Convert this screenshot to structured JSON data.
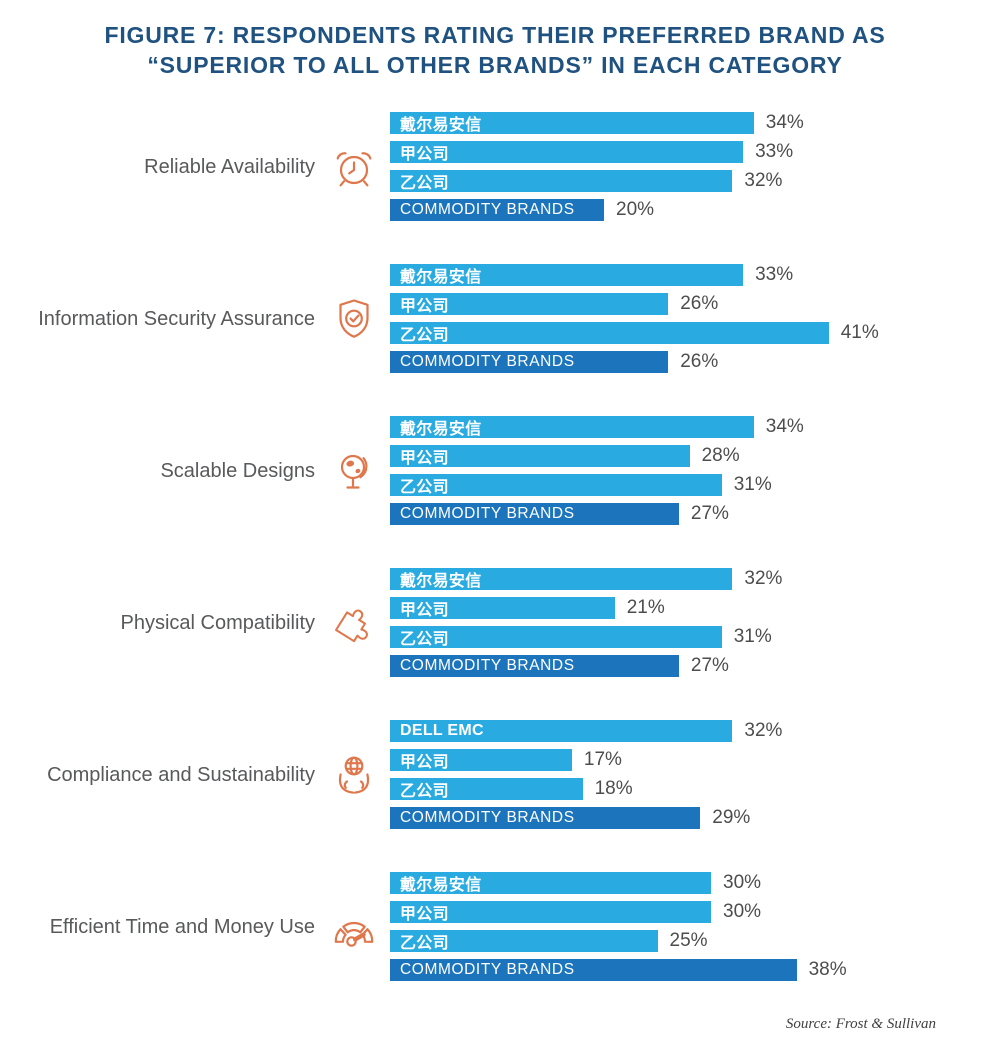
{
  "title": "FIGURE 7: RESPONDENTS RATING THEIR PREFERRED BRAND AS “SUPERIOR TO ALL OTHER BRANDS” IN EACH CATEGORY",
  "source": "Source: Frost & Sullivan",
  "colors": {
    "title": "#1F5280",
    "bar_light_blue": "#29ABE2",
    "bar_dark_blue": "#1C75BC",
    "icon_orange": "#E0764B",
    "category_label_gray": "#58595B",
    "value_label_gray": "#4D4D4F"
  },
  "chart_data": {
    "type": "bar",
    "orientation": "horizontal",
    "unit": "%",
    "xlim": [
      0,
      45
    ],
    "grid": false,
    "legend": "none",
    "series_names": [
      "戴尔易安信",
      "甲公司",
      "乙公司",
      "COMMODITY BRANDS"
    ],
    "groups": [
      {
        "category": "Reliable Availability",
        "icon": "alarm-clock-icon",
        "bars": [
          {
            "label": "戴尔易安信",
            "value": 34
          },
          {
            "label": "甲公司",
            "value": 33
          },
          {
            "label": "乙公司",
            "value": 32
          },
          {
            "label": "COMMODITY BRANDS",
            "value": 20
          }
        ]
      },
      {
        "category": "Information Security Assurance",
        "icon": "shield-check-icon",
        "bars": [
          {
            "label": "戴尔易安信",
            "value": 33
          },
          {
            "label": "甲公司",
            "value": 26
          },
          {
            "label": "乙公司",
            "value": 41
          },
          {
            "label": "COMMODITY BRANDS",
            "value": 26
          }
        ]
      },
      {
        "category": "Scalable Designs",
        "icon": "desk-globe-icon",
        "bars": [
          {
            "label": "戴尔易安信",
            "value": 34
          },
          {
            "label": "甲公司",
            "value": 28
          },
          {
            "label": "乙公司",
            "value": 31
          },
          {
            "label": "COMMODITY BRANDS",
            "value": 27
          }
        ]
      },
      {
        "category": "Physical Compatibility",
        "icon": "puzzle-piece-icon",
        "bars": [
          {
            "label": "戴尔易安信",
            "value": 32
          },
          {
            "label": "甲公司",
            "value": 21
          },
          {
            "label": "乙公司",
            "value": 31
          },
          {
            "label": "COMMODITY BRANDS",
            "value": 27
          }
        ]
      },
      {
        "category": "Compliance and Sustainability",
        "icon": "hands-globe-icon",
        "bars": [
          {
            "label": "DELL EMC",
            "value": 32
          },
          {
            "label": "甲公司",
            "value": 17
          },
          {
            "label": "乙公司",
            "value": 18
          },
          {
            "label": "COMMODITY BRANDS",
            "value": 29
          }
        ]
      },
      {
        "category": "Efficient Time and Money Use",
        "icon": "gauge-icon",
        "bars": [
          {
            "label": "戴尔易安信",
            "value": 30
          },
          {
            "label": "甲公司",
            "value": 30
          },
          {
            "label": "乙公司",
            "value": 25
          },
          {
            "label": "COMMODITY BRANDS",
            "value": 38
          }
        ]
      }
    ]
  }
}
